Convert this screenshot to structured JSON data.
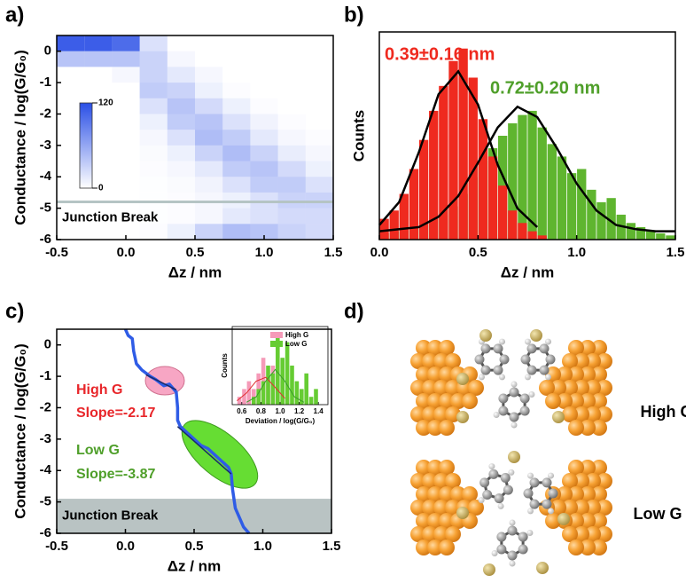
{
  "chart_data": [
    {
      "type": "heatmap",
      "label": "a)",
      "xlabel": "Δz / nm",
      "ylabel": "Conductance / log(G/G₀)",
      "color": "#2a4fe6",
      "xlim": [
        -0.5,
        1.5
      ],
      "xticks": [
        -0.5,
        {
          "value": 0,
          "label": "0.0"
        },
        0.5,
        {
          "value": 1,
          "label": "1.0"
        },
        1.5
      ],
      "ylim": [
        -6,
        0.5
      ],
      "yticks": [
        0,
        -1,
        -2,
        -3,
        -4,
        -5,
        -6
      ],
      "xbins": [
        -0.5,
        -0.3,
        -0.1,
        0.1,
        0.3,
        0.5,
        0.7,
        0.9,
        1.1,
        1.3,
        1.5
      ],
      "ybins": [
        0.5,
        0,
        -0.5,
        -1,
        -1.5,
        -2,
        -2.5,
        -3,
        -3.5,
        -4,
        -4.5,
        -5,
        -5.5,
        -6
      ],
      "z": [
        [
          110,
          110,
          100,
          20,
          0,
          0,
          0,
          0,
          0,
          0
        ],
        [
          40,
          40,
          40,
          30,
          5,
          0,
          0,
          0,
          0,
          0
        ],
        [
          0,
          0,
          5,
          30,
          15,
          5,
          0,
          0,
          0,
          0
        ],
        [
          0,
          0,
          0,
          35,
          30,
          10,
          2,
          0,
          0,
          0
        ],
        [
          0,
          0,
          0,
          20,
          40,
          25,
          10,
          2,
          0,
          0
        ],
        [
          0,
          0,
          0,
          10,
          35,
          40,
          20,
          8,
          2,
          0
        ],
        [
          0,
          0,
          0,
          5,
          20,
          45,
          35,
          15,
          5,
          2
        ],
        [
          0,
          0,
          0,
          3,
          10,
          30,
          45,
          30,
          12,
          5
        ],
        [
          0,
          0,
          0,
          2,
          5,
          15,
          35,
          40,
          25,
          10
        ],
        [
          0,
          0,
          0,
          1,
          3,
          8,
          20,
          35,
          35,
          20
        ],
        [
          0,
          0,
          0,
          1,
          2,
          5,
          10,
          20,
          30,
          30
        ],
        [
          0,
          0,
          0,
          1,
          2,
          5,
          15,
          20,
          25,
          25
        ],
        [
          0,
          0,
          0,
          2,
          10,
          30,
          45,
          40,
          30,
          25
        ]
      ],
      "clim": [
        0,
        120
      ],
      "cticks": [
        0,
        120
      ],
      "annotation": {
        "text": "Junction Break",
        "y": -4.8
      }
    },
    {
      "type": "histogram",
      "label": "b)",
      "xlabel": "Δz / nm",
      "ylabel": "Counts",
      "xlim": [
        0,
        1.5
      ],
      "xticks": [
        {
          "value": 0,
          "label": "0.0"
        },
        0.5,
        {
          "value": 1,
          "label": "1.0"
        },
        1.5
      ],
      "ylim": [
        0,
        100
      ],
      "bins": [
        0,
        0.05,
        0.1,
        0.15,
        0.2,
        0.25,
        0.3,
        0.35,
        0.4,
        0.45,
        0.5,
        0.55,
        0.6,
        0.65,
        0.7,
        0.75,
        0.8,
        0.85,
        0.9,
        0.95,
        1,
        1.05,
        1.1,
        1.15,
        1.2,
        1.25,
        1.3,
        1.35,
        1.4,
        1.45,
        1.5
      ],
      "series": [
        {
          "color": "#5fb52f",
          "values": [
            3,
            4,
            5,
            6,
            8,
            10,
            12,
            16,
            22,
            30,
            38,
            44,
            50,
            56,
            60,
            62,
            54,
            46,
            40,
            32,
            34,
            24,
            18,
            20,
            12,
            8,
            6,
            4,
            3,
            2
          ]
        },
        {
          "color": "#ef2a1f",
          "values": [
            10,
            14,
            22,
            34,
            48,
            62,
            74,
            86,
            92,
            78,
            58,
            40,
            26,
            14,
            8,
            4,
            2,
            0,
            0,
            0,
            0,
            0,
            0,
            0,
            0,
            0,
            0,
            0,
            0,
            0
          ]
        }
      ],
      "fits": [
        {
          "color": "#000000",
          "x": [
            0,
            0.1,
            0.2,
            0.3,
            0.4,
            0.5,
            0.6,
            0.7,
            0.8
          ],
          "values": [
            7,
            18,
            42,
            70,
            81,
            65,
            36,
            15,
            6
          ]
        },
        {
          "color": "#000000",
          "x": [
            0,
            0.1,
            0.2,
            0.3,
            0.4,
            0.5,
            0.6,
            0.7,
            0.8,
            0.9,
            1,
            1.1,
            1.2,
            1.3,
            1.4,
            1.5
          ],
          "values": [
            4,
            5,
            6,
            11,
            21,
            37,
            54,
            64,
            59,
            44,
            27,
            14,
            7,
            5,
            4,
            4
          ]
        }
      ],
      "annotations": [
        {
          "text": "0.39±0.16 nm",
          "color": "#ef2a1f"
        },
        {
          "text": "0.72±0.20 nm",
          "color": "#4f9f2a"
        }
      ]
    },
    {
      "type": "line",
      "label": "c)",
      "xlabel": "Δz / nm",
      "ylabel": "Conductance / log(G/G₀)",
      "color": "#2f5ce6",
      "xlim": [
        -0.5,
        1.5
      ],
      "xticks": [
        -0.5,
        {
          "value": 0,
          "label": "0.0"
        },
        0.5,
        {
          "value": 1,
          "label": "1.0"
        },
        1.5
      ],
      "ylim": [
        -6,
        0.5
      ],
      "yticks": [
        0,
        -1,
        -2,
        -3,
        -4,
        -5,
        -6
      ],
      "x": [
        0,
        0.02,
        0.05,
        0.06,
        0.08,
        0.1,
        0.12,
        0.15,
        0.18,
        0.22,
        0.25,
        0.28,
        0.32,
        0.35,
        0.37,
        0.38,
        0.38,
        0.4,
        0.45,
        0.5,
        0.55,
        0.6,
        0.65,
        0.7,
        0.75,
        0.77,
        0.78,
        0.8,
        0.83,
        0.86,
        0.9
      ],
      "values": [
        0.5,
        0.3,
        0.2,
        -0.2,
        -0.6,
        -0.7,
        -0.8,
        -0.9,
        -1.0,
        -1.1,
        -1.2,
        -1.3,
        -1.25,
        -1.4,
        -1.5,
        -2.0,
        -2.4,
        -2.6,
        -2.8,
        -3.0,
        -3.2,
        -3.3,
        -3.5,
        -3.7,
        -3.9,
        -4.1,
        -4.6,
        -5.2,
        -5.5,
        -5.8,
        -6.0
      ],
      "fits": [
        {
          "color": "#1a2a6a",
          "x": [
            0.15,
            0.37
          ],
          "values": [
            -0.95,
            -1.43
          ]
        },
        {
          "color": "#1a2a6a",
          "x": [
            0.38,
            0.77
          ],
          "values": [
            -2.6,
            -4.11
          ]
        }
      ],
      "break_band": [
        -6,
        -4.9
      ],
      "break_text": "Junction Break",
      "annotations": [
        {
          "text": "High G",
          "color": "#e8262a"
        },
        {
          "text": "Slope=-2.17",
          "color": "#e8262a"
        },
        {
          "text": "Low G",
          "color": "#4f9f2a"
        },
        {
          "text": "Slope=-3.87",
          "color": "#4f9f2a"
        }
      ]
    },
    {
      "type": "histogram",
      "xlabel": "Deviation / log(G/G₀)",
      "ylabel": "Counts",
      "xlim": [
        0.5,
        1.5
      ],
      "xticks": [
        0.6,
        0.8,
        {
          "value": 1,
          "label": "1.0"
        },
        1.2,
        1.4
      ],
      "ylim": [
        0,
        10
      ],
      "bins": [
        0.55,
        0.6,
        0.65,
        0.7,
        0.75,
        0.8,
        0.85,
        0.9,
        0.95,
        1,
        1.05,
        1.1,
        1.15,
        1.2,
        1.25,
        1.3,
        1.35,
        1.4,
        1.45
      ],
      "series": [
        {
          "name": "High G",
          "color": "#f59ab8",
          "values": [
            1,
            2,
            3,
            2,
            4,
            6,
            3,
            5,
            2,
            3,
            1,
            0,
            1,
            0,
            0,
            0,
            0,
            0
          ]
        },
        {
          "name": "Low G",
          "color": "#66cc33",
          "values": [
            0,
            0,
            0,
            1,
            2,
            3,
            5,
            4,
            9,
            6,
            8,
            5,
            3,
            2,
            4,
            1,
            2,
            0
          ]
        }
      ],
      "fits": [
        {
          "color": "#e03030",
          "x": [
            0.55,
            0.65,
            0.75,
            0.85,
            0.95,
            1.05
          ],
          "values": [
            0.5,
            1.5,
            3,
            3.5,
            2.2,
            0.8
          ]
        },
        {
          "color": "#3a9e2a",
          "x": [
            0.65,
            0.75,
            0.85,
            0.95,
            1.05,
            1.15,
            1.25
          ],
          "values": [
            0.3,
            1,
            3,
            4.5,
            3,
            1,
            0.3
          ]
        }
      ]
    }
  ],
  "diagram": {
    "label": "d)",
    "labels": [
      "High G",
      "Low G"
    ]
  }
}
